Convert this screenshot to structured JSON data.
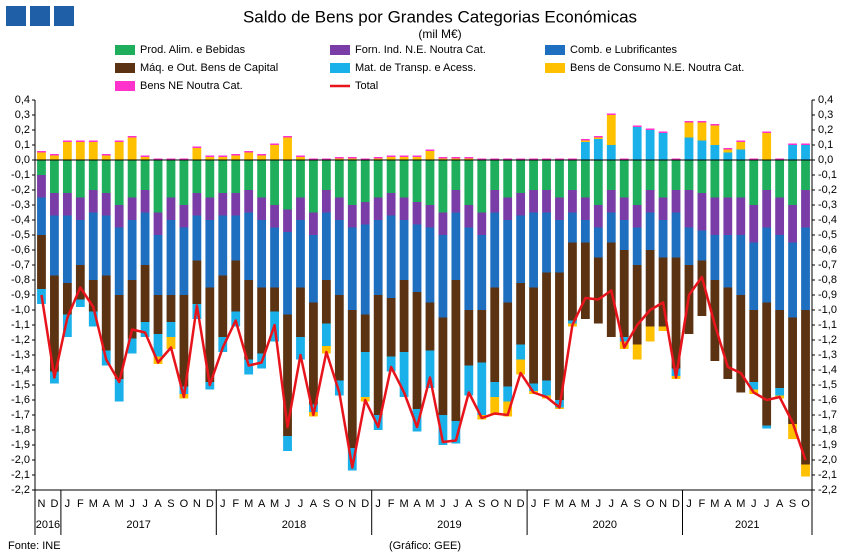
{
  "chart_data": {
    "type": "bar",
    "stacked": true,
    "title": "Saldo de Bens por Grandes Categorias Económicas",
    "subtitle": "(mil M€)",
    "source": "Fonte: INE",
    "note": "(Gráfico: GEE)",
    "categories": [
      "N",
      "D",
      "J",
      "F",
      "M",
      "A",
      "M",
      "J",
      "J",
      "A",
      "S",
      "O",
      "N",
      "D",
      "J",
      "F",
      "M",
      "A",
      "M",
      "J",
      "J",
      "A",
      "S",
      "O",
      "N",
      "D",
      "J",
      "F",
      "M",
      "A",
      "M",
      "J",
      "J",
      "A",
      "S",
      "O",
      "N",
      "D",
      "J",
      "F",
      "M",
      "A",
      "M",
      "J",
      "J",
      "A",
      "S",
      "O",
      "N",
      "D",
      "J",
      "F",
      "M",
      "A",
      "M",
      "J",
      "J",
      "A",
      "S",
      "O"
    ],
    "year_labels": [
      "2016",
      "2017",
      "2018",
      "2019",
      "2020",
      "2021"
    ],
    "ylim": [
      -2.2,
      0.4
    ],
    "yticks": [
      {
        "value": 0.4,
        "label": "0,4"
      },
      {
        "value": 0.3,
        "label": "0,3"
      },
      {
        "value": 0.2,
        "label": "0,2"
      },
      {
        "value": 0.1,
        "label": "0,1"
      },
      {
        "value": 0,
        "label": "0,0"
      },
      {
        "value": -0.1,
        "label": "-0,1"
      },
      {
        "value": -0.2,
        "label": "-0,2"
      },
      {
        "value": -0.3,
        "label": "-0,3"
      },
      {
        "value": -0.4,
        "label": "-0,4"
      },
      {
        "value": -0.5,
        "label": "-0,5"
      },
      {
        "value": -0.6,
        "label": "-0,6"
      },
      {
        "value": -0.7,
        "label": "-0,7"
      },
      {
        "value": -0.8,
        "label": "-0,8"
      },
      {
        "value": -0.9,
        "label": "-0,9"
      },
      {
        "value": -1.0,
        "label": "-1,0"
      },
      {
        "value": -1.1,
        "label": "-1,1"
      },
      {
        "value": -1.2,
        "label": "-1,2"
      },
      {
        "value": -1.3,
        "label": "-1,3"
      },
      {
        "value": -1.4,
        "label": "-1,4"
      },
      {
        "value": -1.5,
        "label": "-1,5"
      },
      {
        "value": -1.6,
        "label": "-1,6"
      },
      {
        "value": -1.7,
        "label": "-1,7"
      },
      {
        "value": -1.8,
        "label": "-1,8"
      },
      {
        "value": -1.9,
        "label": "-1,9"
      },
      {
        "value": -2.0,
        "label": "-2,0"
      },
      {
        "value": -2.1,
        "label": "-2,1"
      },
      {
        "value": -2.2,
        "label": "-2,2"
      }
    ],
    "series": [
      {
        "name": "Prod. Alim. e Bebidas",
        "color": "#1fae5c",
        "values": [
          -0.1,
          -0.22,
          -0.22,
          -0.25,
          -0.2,
          -0.22,
          -0.3,
          -0.25,
          -0.2,
          -0.35,
          -0.25,
          -0.3,
          -0.22,
          -0.25,
          -0.22,
          -0.22,
          -0.2,
          -0.25,
          -0.3,
          -0.33,
          -0.25,
          -0.35,
          -0.2,
          -0.25,
          -0.3,
          -0.28,
          -0.25,
          -0.22,
          -0.25,
          -0.28,
          -0.3,
          -0.35,
          -0.2,
          -0.3,
          -0.35,
          -0.2,
          -0.25,
          -0.22,
          -0.2,
          -0.2,
          -0.25,
          -0.2,
          -0.25,
          -0.3,
          -0.2,
          -0.25,
          -0.3,
          -0.2,
          -0.25,
          -0.2,
          -0.2,
          -0.22,
          -0.25,
          -0.25,
          -0.25,
          -0.3,
          -0.2,
          -0.25,
          -0.3,
          -0.2
        ]
      },
      {
        "name": "Forn. Ind. N.E. Noutra Cat.",
        "color": "#7a3ca6",
        "values": [
          -0.15,
          -0.15,
          -0.15,
          -0.15,
          -0.15,
          -0.15,
          -0.15,
          -0.15,
          -0.15,
          -0.15,
          -0.15,
          -0.15,
          -0.15,
          -0.15,
          -0.15,
          -0.15,
          -0.15,
          -0.15,
          -0.15,
          -0.15,
          -0.15,
          -0.15,
          -0.15,
          -0.15,
          -0.15,
          -0.15,
          -0.15,
          -0.15,
          -0.15,
          -0.15,
          -0.15,
          -0.15,
          -0.15,
          -0.15,
          -0.15,
          -0.15,
          -0.15,
          -0.15,
          -0.15,
          -0.15,
          -0.15,
          -0.15,
          -0.15,
          -0.15,
          -0.15,
          -0.15,
          -0.15,
          -0.15,
          -0.15,
          -0.15,
          -0.25,
          -0.25,
          -0.25,
          -0.25,
          -0.25,
          -0.25,
          -0.25,
          -0.25,
          -0.25,
          -0.25
        ]
      },
      {
        "name": "Comb. e Lubrificantes",
        "color": "#1f6fc0",
        "values": [
          -0.25,
          -0.4,
          -0.45,
          -0.3,
          -0.45,
          -0.4,
          -0.45,
          -0.4,
          -0.35,
          -0.4,
          -0.5,
          -0.45,
          -0.3,
          -0.45,
          -0.4,
          -0.3,
          -0.45,
          -0.45,
          -0.4,
          -0.55,
          -0.45,
          -0.45,
          -0.45,
          -0.5,
          -0.55,
          -0.6,
          -0.5,
          -0.55,
          -0.4,
          -0.45,
          -0.5,
          -0.55,
          -0.45,
          -0.55,
          -0.5,
          -0.5,
          -0.55,
          -0.45,
          -0.5,
          -0.4,
          -0.35,
          -0.2,
          -0.15,
          -0.2,
          -0.2,
          -0.2,
          -0.25,
          -0.25,
          -0.25,
          -0.3,
          -0.25,
          -0.2,
          -0.3,
          -0.35,
          -0.4,
          -0.45,
          -0.5,
          -0.5,
          -0.5,
          -0.55
        ]
      },
      {
        "name": "Máq. e Out. Bens de Capital",
        "color": "#5c3312",
        "values": [
          -0.36,
          -0.64,
          -0.21,
          -0.23,
          -0.21,
          -0.5,
          -0.56,
          -0.39,
          -0.38,
          -0.26,
          -0.18,
          -0.61,
          -0.29,
          -0.63,
          -0.41,
          -0.34,
          -0.53,
          -0.44,
          -0.16,
          -0.81,
          -0.33,
          -0.68,
          -0.29,
          -0.57,
          -0.92,
          -0.25,
          -0.8,
          -0.39,
          -0.48,
          -0.78,
          -0.32,
          -0.65,
          -0.94,
          -0.37,
          -0.35,
          -0.63,
          -0.56,
          -0.41,
          -0.64,
          -0.72,
          -0.85,
          -0.52,
          -0.51,
          -0.44,
          -0.63,
          -0.58,
          -0.53,
          -0.51,
          -0.46,
          -0.74,
          -0.46,
          -0.37,
          -0.54,
          -0.61,
          -0.65,
          -0.48,
          -0.82,
          -0.52,
          -0.71,
          -1.03
        ]
      },
      {
        "name": "Mat. de Transp. e Acess.",
        "color": "#1ab0ea",
        "values": [
          -0.1,
          -0.08,
          -0.15,
          -0.05,
          -0.1,
          -0.1,
          -0.15,
          -0.1,
          -0.1,
          -0.15,
          -0.1,
          -0.05,
          -0.1,
          -0.05,
          -0.1,
          -0.1,
          -0.1,
          -0.1,
          -0.2,
          -0.1,
          -0.15,
          -0.05,
          -0.15,
          -0.1,
          -0.15,
          -0.3,
          -0.1,
          -0.1,
          -0.3,
          -0.15,
          -0.25,
          -0.2,
          -0.15,
          -0.2,
          -0.35,
          -0.1,
          -0.1,
          -0.1,
          -0.05,
          -0.1,
          -0.05,
          -0.02,
          0.12,
          0.14,
          0.1,
          -0.03,
          0.22,
          0.2,
          0.18,
          -0.05,
          0.15,
          0.13,
          0.1,
          0.05,
          0.07,
          -0.05,
          -0.02,
          -0.05,
          0.1,
          0.1
        ]
      },
      {
        "name": "Bens de Consumo N.E. Noutra Cat.",
        "color": "#ffc000",
        "values": [
          0.05,
          0.03,
          0.12,
          0.12,
          0.12,
          0.03,
          0.12,
          0.15,
          0.02,
          -0.05,
          -0.08,
          -0.03,
          0.08,
          0.02,
          0.02,
          0.03,
          0.05,
          0.03,
          0.1,
          0.15,
          0.02,
          -0.03,
          -0.05,
          0.01,
          0.01,
          -0.03,
          0.01,
          0.02,
          0.02,
          0.02,
          0.06,
          0.01,
          0.01,
          0.01,
          -0.03,
          -0.12,
          -0.1,
          -0.1,
          -0.02,
          -0.02,
          -0.01,
          -0.02,
          0.01,
          0.01,
          0.2,
          -0.05,
          -0.1,
          -0.1,
          -0.03,
          -0.02,
          0.1,
          0.12,
          0.13,
          0.02,
          0.05,
          -0.03,
          0.18,
          -0.02,
          -0.1,
          -0.08
        ]
      },
      {
        "name": "Bens NE Noutra Cat.",
        "color": "#ff33cc",
        "values": [
          0.01,
          0.01,
          0.01,
          0.01,
          0.01,
          0.01,
          0.01,
          0.01,
          0.01,
          0.01,
          0.01,
          0.01,
          0.01,
          0.01,
          0.01,
          0.01,
          0.01,
          0.01,
          0.01,
          0.01,
          0.01,
          0.01,
          0.01,
          0.01,
          0.01,
          0.01,
          0.01,
          0.01,
          0.01,
          0.01,
          0.01,
          0.01,
          0.01,
          0.01,
          0.01,
          0.01,
          0.01,
          0.01,
          0.01,
          0.01,
          0.01,
          0.01,
          0.01,
          0.01,
          0.01,
          0.01,
          0.01,
          0.01,
          0.01,
          0.01,
          0.01,
          0.01,
          0.01,
          0.01,
          0.01,
          0.01,
          0.01,
          0.01,
          0.01,
          0.01
        ]
      },
      {
        "name": "Total",
        "type": "line",
        "color": "#e8141c",
        "values": [
          -0.9,
          -1.45,
          -1.05,
          -0.85,
          -0.98,
          -1.33,
          -1.48,
          -1.13,
          -1.15,
          -1.35,
          -1.25,
          -1.58,
          -0.97,
          -1.5,
          -1.25,
          -1.07,
          -1.37,
          -1.35,
          -1.1,
          -1.78,
          -1.3,
          -1.7,
          -1.28,
          -1.55,
          -2.05,
          -1.6,
          -1.78,
          -1.38,
          -1.55,
          -1.78,
          -1.45,
          -1.88,
          -1.87,
          -1.55,
          -1.72,
          -1.69,
          -1.7,
          -1.42,
          -1.55,
          -1.58,
          -1.65,
          -1.1,
          -0.92,
          -0.93,
          -0.87,
          -1.25,
          -1.1,
          -1.0,
          -0.95,
          -1.45,
          -0.9,
          -0.78,
          -1.1,
          -1.38,
          -1.42,
          -1.55,
          -1.6,
          -1.58,
          -1.75,
          -2.0
        ]
      }
    ]
  }
}
